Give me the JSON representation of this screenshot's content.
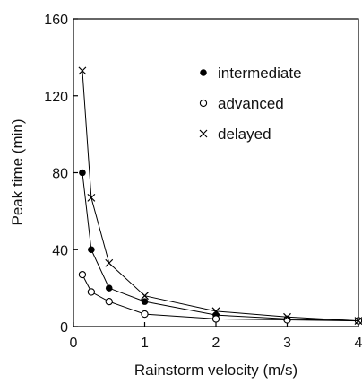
{
  "chart_data": {
    "type": "line",
    "title": "",
    "xlabel": "Rainstorm velocity (m/s)",
    "ylabel": "Peak time (min)",
    "xlim": [
      0,
      4
    ],
    "ylim": [
      0,
      160
    ],
    "xticks": [
      "0",
      "1",
      "2",
      "3",
      "4"
    ],
    "yticks": [
      "0",
      "40",
      "80",
      "120",
      "160"
    ],
    "grid": false,
    "legend_position": "top-right",
    "x": [
      0.125,
      0.25,
      0.5,
      1,
      2,
      3,
      4
    ],
    "series": [
      {
        "name": "intermediate",
        "marker": "filled-circle",
        "values": [
          80,
          40,
          20,
          13,
          6,
          4,
          3
        ]
      },
      {
        "name": "advanced",
        "marker": "open-circle",
        "values": [
          27,
          18,
          13,
          6.5,
          4,
          3.5,
          3
        ]
      },
      {
        "name": "delayed",
        "marker": "cross",
        "values": [
          133,
          67,
          33,
          16,
          8,
          5,
          3
        ]
      }
    ]
  }
}
